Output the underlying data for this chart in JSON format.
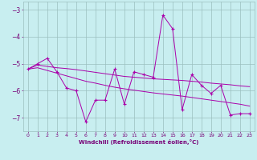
{
  "xlabel": "Windchill (Refroidissement éolien,°C)",
  "x": [
    0,
    1,
    2,
    3,
    4,
    5,
    6,
    7,
    8,
    9,
    10,
    11,
    12,
    13,
    14,
    15,
    16,
    17,
    18,
    19,
    20,
    21,
    22,
    23
  ],
  "y_main": [
    -5.2,
    -5.0,
    -4.8,
    -5.3,
    -5.9,
    -6.0,
    -7.15,
    -6.35,
    -6.35,
    -5.2,
    -6.5,
    -5.3,
    -5.4,
    -5.5,
    -3.2,
    -3.7,
    -6.7,
    -5.4,
    -5.8,
    -6.1,
    -5.8,
    -6.9,
    -6.85,
    -6.85
  ],
  "y_upper": [
    -5.2,
    -5.05,
    -5.1,
    -5.15,
    -5.18,
    -5.22,
    -5.27,
    -5.32,
    -5.37,
    -5.42,
    -5.47,
    -5.5,
    -5.53,
    -5.56,
    -5.58,
    -5.6,
    -5.62,
    -5.65,
    -5.68,
    -5.72,
    -5.75,
    -5.78,
    -5.82,
    -5.85
  ],
  "y_lower": [
    -5.2,
    -5.15,
    -5.25,
    -5.35,
    -5.45,
    -5.55,
    -5.65,
    -5.72,
    -5.8,
    -5.87,
    -5.93,
    -5.98,
    -6.03,
    -6.08,
    -6.12,
    -6.16,
    -6.2,
    -6.25,
    -6.3,
    -6.35,
    -6.4,
    -6.45,
    -6.5,
    -6.57
  ],
  "line_color": "#aa00aa",
  "bg_color": "#c8eef0",
  "grid_color": "#9bbfbf",
  "ylim": [
    -7.5,
    -2.7
  ],
  "yticks": [
    -7,
    -6,
    -5,
    -4,
    -3
  ],
  "xlim": [
    -0.5,
    23.5
  ],
  "text_color": "#770077"
}
